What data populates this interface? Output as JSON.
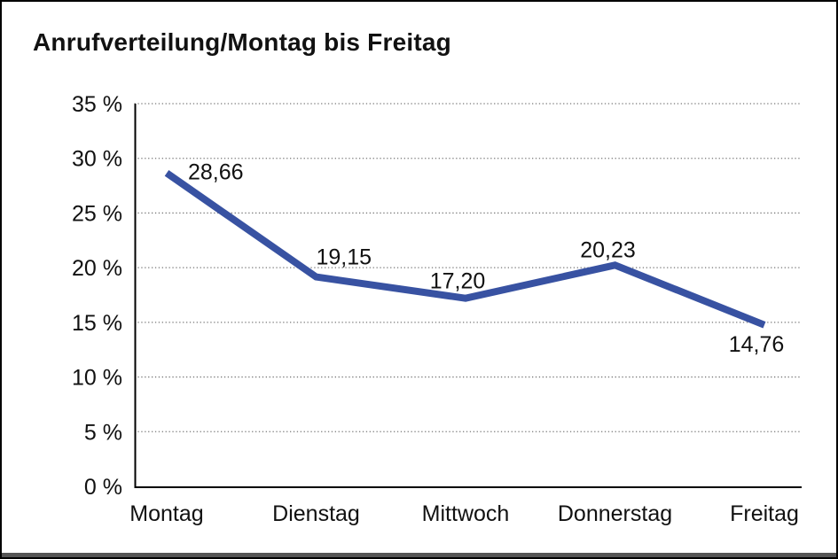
{
  "title": "Anrufverteilung/Montag bis Freitag",
  "colors": {
    "line": "#3852A2",
    "grid": "#777777",
    "axis": "#000000",
    "text": "#111111",
    "frame": "#000000",
    "bottom_edge": "#555555"
  },
  "chart_data": {
    "type": "line",
    "title": "Anrufverteilung/Montag bis Freitag",
    "categories": [
      "Montag",
      "Dienstag",
      "Mittwoch",
      "Donnerstag",
      "Freitag"
    ],
    "values": [
      28.66,
      19.15,
      17.2,
      20.23,
      14.76
    ],
    "value_labels": [
      "28,66",
      "19,15",
      "17,20",
      "20,23",
      "14,76"
    ],
    "xlabel": "",
    "ylabel": "",
    "ylim": [
      0,
      35
    ],
    "ytick_step": 5,
    "ytick_labels": [
      "0 %",
      "5 %",
      "10 %",
      "15 %",
      "20 %",
      "25 %",
      "30 %",
      "35 %"
    ],
    "grid": true,
    "gridline_style": "dotted",
    "legend": false
  }
}
